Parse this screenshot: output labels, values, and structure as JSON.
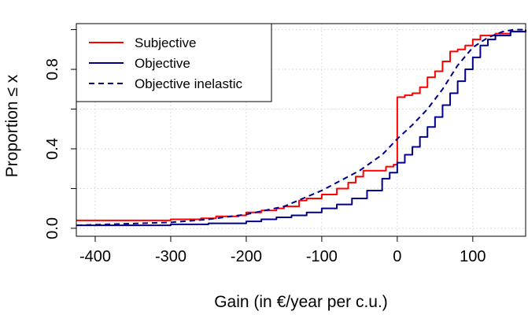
{
  "chart_data": {
    "type": "line",
    "title": "",
    "xlabel": "Gain (in €/year per c.u.)",
    "ylabel": "Proportion  ≤  x",
    "xlim": [
      -425,
      170
    ],
    "ylim": [
      -0.04,
      1.03
    ],
    "xticks": [
      -400,
      -300,
      -200,
      -100,
      0,
      100
    ],
    "yticks": [
      0.0,
      0.4,
      0.8
    ],
    "ytick_labels": [
      "0.0",
      "0.4",
      "0.8"
    ],
    "minor_y_gridlines": [
      0.2,
      0.6,
      1.0
    ],
    "grid": true,
    "legend_position": "top-left",
    "series": [
      {
        "name": "Subjective",
        "color": "#ff0000",
        "style": "step",
        "points": [
          [
            -425,
            0.04
          ],
          [
            -310,
            0.04
          ],
          [
            -300,
            0.045
          ],
          [
            -260,
            0.05
          ],
          [
            -240,
            0.06
          ],
          [
            -210,
            0.065
          ],
          [
            -200,
            0.08
          ],
          [
            -180,
            0.09
          ],
          [
            -160,
            0.1
          ],
          [
            -150,
            0.11
          ],
          [
            -130,
            0.14
          ],
          [
            -120,
            0.15
          ],
          [
            -100,
            0.17
          ],
          [
            -80,
            0.2
          ],
          [
            -65,
            0.23
          ],
          [
            -55,
            0.26
          ],
          [
            -45,
            0.29
          ],
          [
            -30,
            0.29
          ],
          [
            -15,
            0.31
          ],
          [
            -5,
            0.32
          ],
          [
            0,
            0.35
          ],
          [
            0,
            0.66
          ],
          [
            10,
            0.67
          ],
          [
            20,
            0.68
          ],
          [
            30,
            0.71
          ],
          [
            40,
            0.76
          ],
          [
            50,
            0.79
          ],
          [
            60,
            0.84
          ],
          [
            70,
            0.89
          ],
          [
            80,
            0.9
          ],
          [
            90,
            0.92
          ],
          [
            100,
            0.95
          ],
          [
            110,
            0.97
          ],
          [
            130,
            0.98
          ],
          [
            150,
            0.99
          ],
          [
            170,
            1.0
          ]
        ]
      },
      {
        "name": "Objective",
        "color": "#00008b",
        "style": "step",
        "points": [
          [
            -425,
            0.015
          ],
          [
            -300,
            0.02
          ],
          [
            -250,
            0.025
          ],
          [
            -200,
            0.035
          ],
          [
            -180,
            0.045
          ],
          [
            -160,
            0.055
          ],
          [
            -140,
            0.065
          ],
          [
            -120,
            0.08
          ],
          [
            -100,
            0.1
          ],
          [
            -80,
            0.12
          ],
          [
            -60,
            0.15
          ],
          [
            -40,
            0.19
          ],
          [
            -20,
            0.25
          ],
          [
            -10,
            0.28
          ],
          [
            0,
            0.33
          ],
          [
            10,
            0.37
          ],
          [
            20,
            0.41
          ],
          [
            30,
            0.46
          ],
          [
            40,
            0.51
          ],
          [
            50,
            0.56
          ],
          [
            60,
            0.62
          ],
          [
            70,
            0.68
          ],
          [
            80,
            0.74
          ],
          [
            90,
            0.8
          ],
          [
            100,
            0.86
          ],
          [
            110,
            0.92
          ],
          [
            120,
            0.95
          ],
          [
            130,
            0.97
          ],
          [
            150,
            0.99
          ],
          [
            170,
            1.0
          ]
        ]
      },
      {
        "name": "Objective inelastic",
        "color": "#00008b",
        "style": "dashed",
        "points": [
          [
            -425,
            0.015
          ],
          [
            -300,
            0.03
          ],
          [
            -250,
            0.045
          ],
          [
            -200,
            0.07
          ],
          [
            -150,
            0.11
          ],
          [
            -100,
            0.19
          ],
          [
            -50,
            0.29
          ],
          [
            -20,
            0.37
          ],
          [
            0,
            0.45
          ],
          [
            20,
            0.52
          ],
          [
            40,
            0.6
          ],
          [
            60,
            0.7
          ],
          [
            80,
            0.82
          ],
          [
            100,
            0.91
          ],
          [
            120,
            0.96
          ],
          [
            140,
            0.99
          ],
          [
            155,
            1.0
          ],
          [
            170,
            1.0
          ]
        ]
      }
    ]
  }
}
